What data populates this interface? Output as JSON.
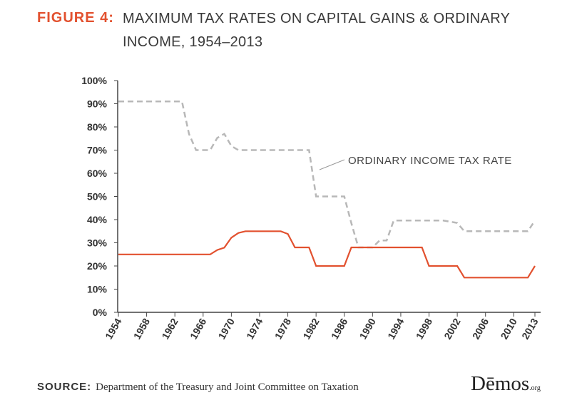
{
  "figure_label": "FIGURE 4:",
  "chart_data": {
    "type": "line",
    "title": "MAXIMUM TAX RATES ON CAPITAL GAINS & ORDINARY INCOME, 1954–2013",
    "x": [
      1954,
      1955,
      1956,
      1957,
      1958,
      1959,
      1960,
      1961,
      1962,
      1963,
      1964,
      1965,
      1966,
      1967,
      1968,
      1969,
      1970,
      1971,
      1972,
      1973,
      1974,
      1975,
      1976,
      1977,
      1978,
      1979,
      1980,
      1981,
      1982,
      1983,
      1984,
      1985,
      1986,
      1987,
      1988,
      1989,
      1990,
      1991,
      1992,
      1993,
      1994,
      1995,
      1996,
      1997,
      1998,
      1999,
      2000,
      2001,
      2002,
      2003,
      2004,
      2005,
      2006,
      2007,
      2008,
      2009,
      2010,
      2011,
      2012,
      2013
    ],
    "series": [
      {
        "name": "ORDINARY INCOME TAX RATE",
        "color": "#b8b8b8",
        "dashed": true,
        "values": [
          91,
          91,
          91,
          91,
          91,
          91,
          91,
          91,
          91,
          91,
          77,
          70,
          70,
          70,
          75.25,
          77,
          71.75,
          70,
          70,
          70,
          70,
          70,
          70,
          70,
          70,
          70,
          70,
          70,
          50,
          50,
          50,
          50,
          50,
          38.5,
          28,
          28,
          28,
          31,
          31,
          39.6,
          39.6,
          39.6,
          39.6,
          39.6,
          39.6,
          39.6,
          39.6,
          39.1,
          38.6,
          35,
          35,
          35,
          35,
          35,
          35,
          35,
          35,
          35,
          35,
          39.6
        ]
      },
      {
        "color": "#e2512f",
        "dashed": false,
        "values": [
          25,
          25,
          25,
          25,
          25,
          25,
          25,
          25,
          25,
          25,
          25,
          25,
          25,
          25,
          26.9,
          27.9,
          32.21,
          34.25,
          35,
          35,
          35,
          35,
          35,
          35,
          33.8,
          28,
          28,
          28,
          20,
          20,
          20,
          20,
          20,
          28,
          28,
          28,
          28,
          28,
          28,
          28,
          28,
          28,
          28,
          28,
          20,
          20,
          20,
          20,
          20,
          15,
          15,
          15,
          15,
          15,
          15,
          15,
          15,
          15,
          15,
          20
        ]
      }
    ],
    "xlim": [
      1954,
      2013
    ],
    "xticks": [
      1954,
      1958,
      1962,
      1966,
      1970,
      1974,
      1978,
      1982,
      1986,
      1990,
      1994,
      1998,
      2002,
      2006,
      2010,
      2013
    ],
    "ylim": [
      0,
      100
    ],
    "yticks": [
      {
        "value": 0,
        "label": "0%"
      },
      {
        "value": 10,
        "label": "10%"
      },
      {
        "value": 20,
        "label": "20%"
      },
      {
        "value": 30,
        "label": "30%"
      },
      {
        "value": 40,
        "label": "40%"
      },
      {
        "value": 50,
        "label": "50%"
      },
      {
        "value": 60,
        "label": "60%"
      },
      {
        "value": 70,
        "label": "70%"
      },
      {
        "value": 80,
        "label": "80%"
      },
      {
        "value": 90,
        "label": "90%"
      },
      {
        "value": 100,
        "label": "100%"
      }
    ],
    "grid": false
  },
  "source": {
    "label": "SOURCE:",
    "text": "Department of the Treasury and Joint Committee on Taxation"
  },
  "logo": {
    "name": "Dēmos",
    "suffix": ".org"
  }
}
